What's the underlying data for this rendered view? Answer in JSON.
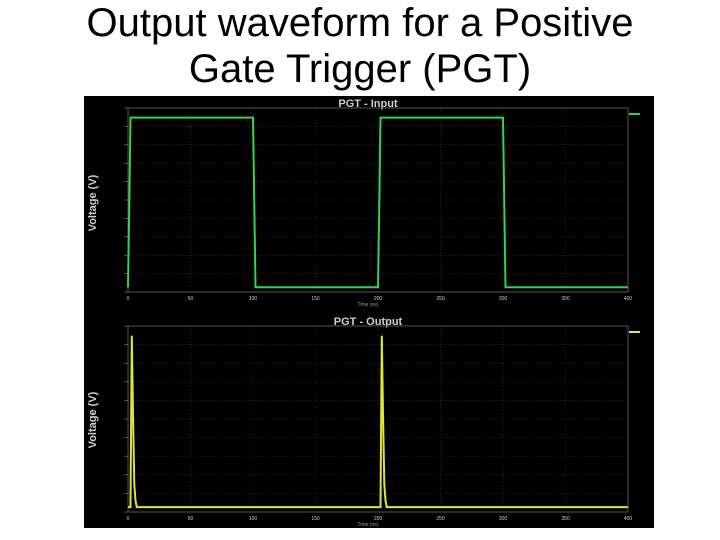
{
  "slide": {
    "title_line1": "Output waveform for a Positive",
    "title_line2": "Gate Trigger (PGT)"
  },
  "colors": {
    "background": "#000000",
    "axis_text": "#cfcfcf",
    "grid": "#3a3a3a",
    "input_trace": "#39d04a",
    "output_trace": "#e3e33a"
  },
  "chart_data": [
    {
      "type": "line",
      "title": "PGT - Input",
      "ylabel": "Voltage (V)",
      "xlabel": "Time (ns)",
      "xlim": [
        0,
        400
      ],
      "ylim": [
        -0.25,
        5.5
      ],
      "xticks": [
        0,
        50,
        100,
        150,
        200,
        250,
        300,
        350,
        400
      ],
      "grid": true,
      "series": [
        {
          "name": "",
          "x": [
            0,
            1,
            2,
            100,
            101,
            102,
            200,
            201,
            202,
            300,
            301,
            302,
            400
          ],
          "y": [
            -0.1,
            2.5,
            5.2,
            5.2,
            2.5,
            -0.1,
            -0.1,
            2.5,
            5.2,
            5.2,
            2.5,
            -0.1,
            -0.1
          ]
        }
      ]
    },
    {
      "type": "line",
      "title": "PGT - Output",
      "ylabel": "Voltage (V)",
      "xlabel": "Time (ns)",
      "xlim": [
        0,
        400
      ],
      "ylim": [
        -0.25,
        5.5
      ],
      "xticks": [
        0,
        50,
        100,
        150,
        200,
        250,
        300,
        350,
        400
      ],
      "grid": true,
      "series": [
        {
          "name": "",
          "x": [
            0,
            2,
            3,
            4,
            5,
            6,
            7,
            9,
            200,
            202,
            203,
            204,
            205,
            206,
            207,
            209,
            400
          ],
          "y": [
            -0.1,
            -0.1,
            5.2,
            2.8,
            0.6,
            0.1,
            -0.1,
            -0.1,
            -0.1,
            -0.1,
            5.2,
            2.8,
            0.6,
            0.1,
            -0.1,
            -0.1,
            -0.1
          ]
        }
      ]
    }
  ]
}
